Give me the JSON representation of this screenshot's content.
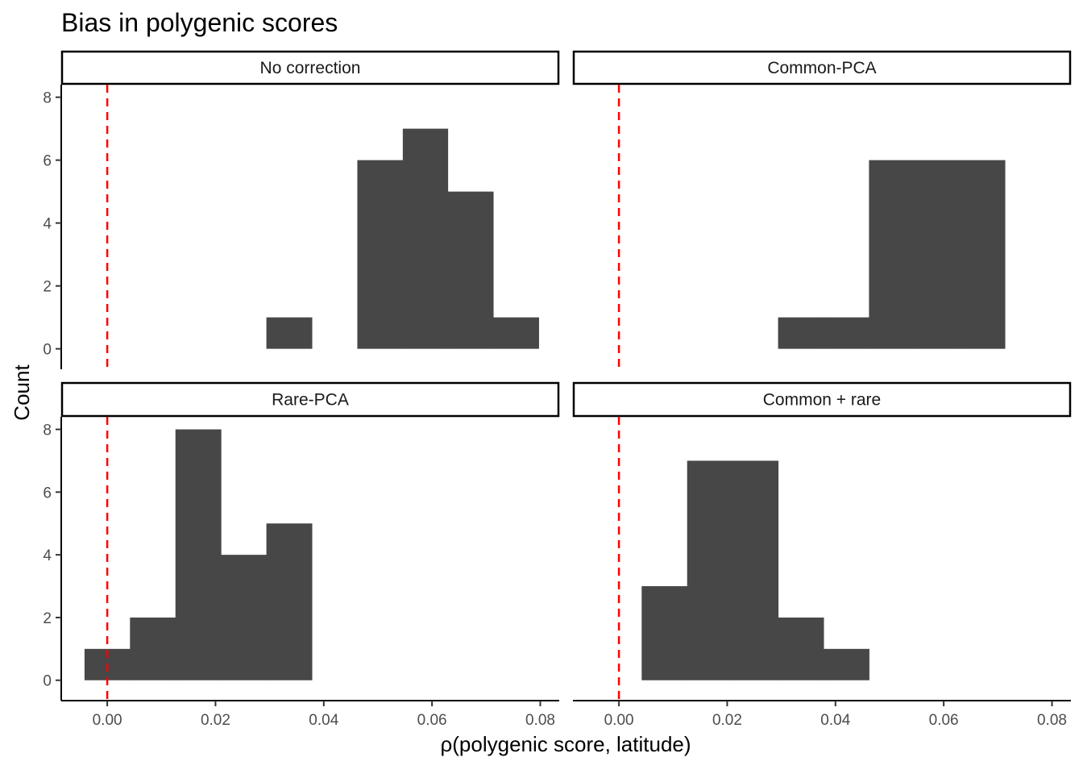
{
  "chart_data": {
    "type": "bar",
    "title": "Bias in polygenic scores",
    "xlabel": "ρ(polygenic score, latitude)",
    "ylabel": "Count",
    "xlim": [
      -0.0085,
      0.0835
    ],
    "ylim": [
      -0.65,
      8.4
    ],
    "x_ticks": [
      0.0,
      0.02,
      0.04,
      0.06,
      0.08
    ],
    "x_tick_labels": [
      "0.00",
      "0.02",
      "0.04",
      "0.06",
      "0.08"
    ],
    "y_ticks": [
      0,
      2,
      4,
      6,
      8
    ],
    "y_tick_labels": [
      "0",
      "2",
      "4",
      "6",
      "8"
    ],
    "reference_line": {
      "x": 0.0,
      "color": "#ff0000",
      "style": "dashed"
    },
    "bar_color": "#474747",
    "bin_width": 0.00838,
    "panels": [
      {
        "name": "No correction",
        "bins": [
          {
            "x0": 0.0294,
            "x1": 0.0378,
            "count": 1
          },
          {
            "x0": 0.0462,
            "x1": 0.0546,
            "count": 6
          },
          {
            "x0": 0.0546,
            "x1": 0.0629,
            "count": 7
          },
          {
            "x0": 0.0629,
            "x1": 0.0713,
            "count": 5
          },
          {
            "x0": 0.0713,
            "x1": 0.0797,
            "count": 1
          }
        ]
      },
      {
        "name": "Common-PCA",
        "bins": [
          {
            "x0": 0.0294,
            "x1": 0.0378,
            "count": 1
          },
          {
            "x0": 0.0378,
            "x1": 0.0462,
            "count": 1
          },
          {
            "x0": 0.0462,
            "x1": 0.0546,
            "count": 6
          },
          {
            "x0": 0.0546,
            "x1": 0.0629,
            "count": 6
          },
          {
            "x0": 0.0629,
            "x1": 0.0713,
            "count": 6
          }
        ]
      },
      {
        "name": "Rare-PCA",
        "bins": [
          {
            "x0": -0.0042,
            "x1": 0.0042,
            "count": 1
          },
          {
            "x0": 0.0042,
            "x1": 0.0126,
            "count": 2
          },
          {
            "x0": 0.0126,
            "x1": 0.021,
            "count": 8
          },
          {
            "x0": 0.021,
            "x1": 0.0294,
            "count": 4
          },
          {
            "x0": 0.0294,
            "x1": 0.0378,
            "count": 5
          }
        ]
      },
      {
        "name": "Common + rare",
        "bins": [
          {
            "x0": 0.0042,
            "x1": 0.0126,
            "count": 3
          },
          {
            "x0": 0.0126,
            "x1": 0.021,
            "count": 7
          },
          {
            "x0": 0.021,
            "x1": 0.0294,
            "count": 7
          },
          {
            "x0": 0.0294,
            "x1": 0.0378,
            "count": 2
          },
          {
            "x0": 0.0378,
            "x1": 0.0462,
            "count": 1
          }
        ]
      }
    ]
  }
}
